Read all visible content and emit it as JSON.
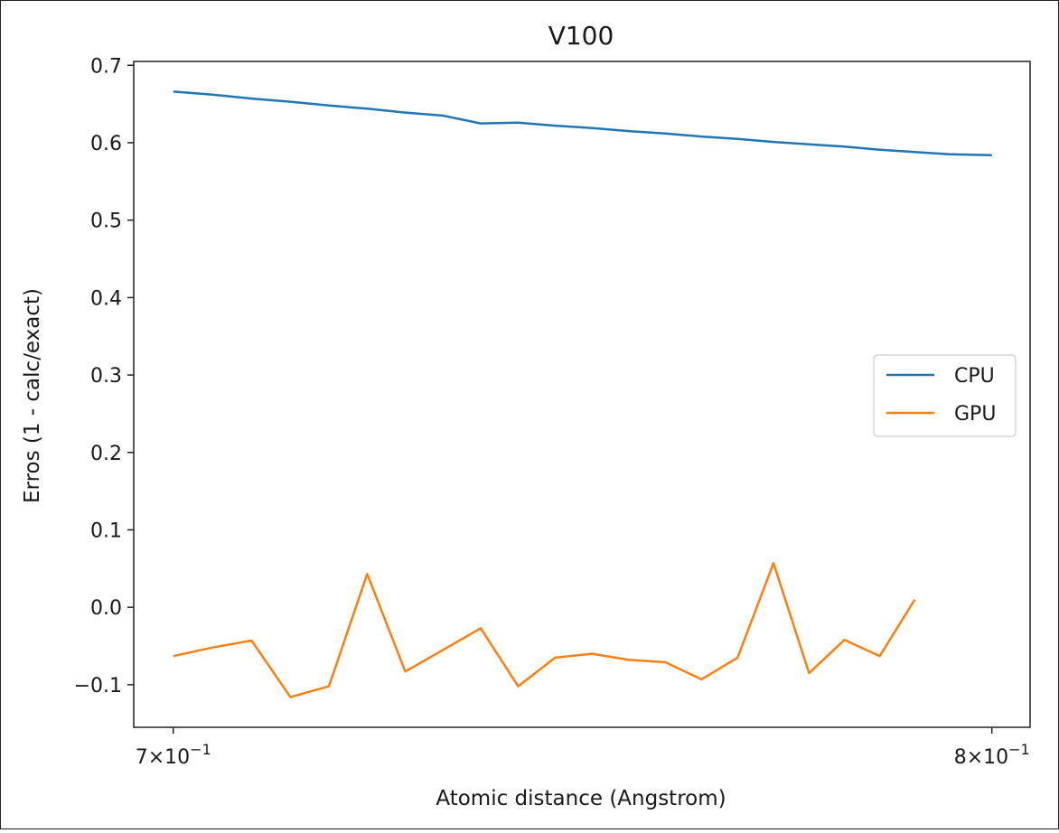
{
  "chart_data": {
    "type": "line",
    "title": "V100",
    "xlabel": "Atomic distance (Angstrom)",
    "ylabel": "Erros (1 - calc/exact)",
    "xscale": "log",
    "xlim": [
      0.6955,
      0.805
    ],
    "ylim": [
      -0.155,
      0.705
    ],
    "xticks": [
      {
        "value": 0.7,
        "base": "7",
        "times": "×",
        "mant": "10",
        "exp": "−1"
      },
      {
        "value": 0.8,
        "base": "8",
        "times": "×",
        "mant": "10",
        "exp": "−1"
      }
    ],
    "yticks": [
      {
        "value": 0.7,
        "label": "0.7"
      },
      {
        "value": 0.6,
        "label": "0.6"
      },
      {
        "value": 0.5,
        "label": "0.5"
      },
      {
        "value": 0.4,
        "label": "0.4"
      },
      {
        "value": 0.3,
        "label": "0.3"
      },
      {
        "value": 0.2,
        "label": "0.2"
      },
      {
        "value": 0.1,
        "label": "0.1"
      },
      {
        "value": 0.0,
        "label": "0.0"
      },
      {
        "value": -0.1,
        "label": "−0.1"
      }
    ],
    "legend_position": "center-right",
    "grid": false,
    "x": [
      0.7,
      0.7045,
      0.709,
      0.7135,
      0.718,
      0.7225,
      0.727,
      0.7315,
      0.736,
      0.7405,
      0.745,
      0.7495,
      0.754,
      0.7585,
      0.763,
      0.7675,
      0.772,
      0.7765,
      0.781,
      0.7855,
      0.79,
      0.7945,
      0.8
    ],
    "series": [
      {
        "name": "CPU",
        "color": "#1f77b4",
        "values": [
          0.666,
          0.662,
          0.657,
          0.653,
          0.648,
          0.644,
          0.639,
          0.635,
          0.625,
          0.626,
          0.622,
          0.619,
          0.615,
          0.612,
          0.608,
          0.605,
          0.601,
          0.598,
          0.595,
          0.591,
          0.588,
          0.585,
          0.584
        ]
      },
      {
        "name": "GPU",
        "color": "#ff7f0e",
        "values": [
          -0.063,
          -0.052,
          -0.043,
          -0.116,
          -0.102,
          0.043,
          -0.083,
          -0.055,
          -0.027,
          -0.102,
          -0.065,
          -0.06,
          -0.068,
          -0.071,
          -0.093,
          -0.065,
          0.057,
          -0.085,
          -0.042,
          -0.063,
          0.01,
          null,
          null
        ]
      }
    ]
  }
}
